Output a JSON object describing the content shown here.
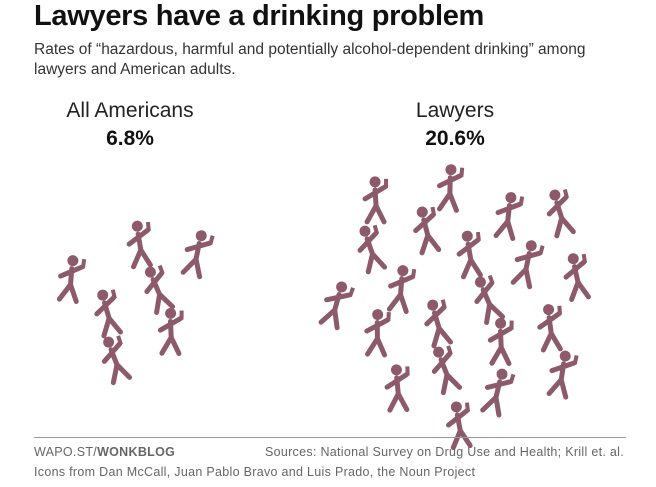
{
  "chart_data": {
    "type": "pictogram",
    "title": "Lawyers have a drinking problem",
    "subtitle": "Rates of “hazardous, harmful and potentially alcohol-dependent drinking” among lawyers and American adults.",
    "categories": [
      "All Americans",
      "Lawyers"
    ],
    "values": [
      6.8,
      20.6
    ],
    "value_labels": [
      "6.8%",
      "20.6%"
    ],
    "color": "#8c5a6b"
  },
  "footer": {
    "source_left": "WAPO.ST/",
    "source_brand": "WONKBLOG",
    "sources": "Sources: National Survey on Drug Use and Health; Krill et. al.",
    "credits": "Icons from Dan McCall, Juan Pablo Bravo and Luis Prado, the Noun Project"
  }
}
